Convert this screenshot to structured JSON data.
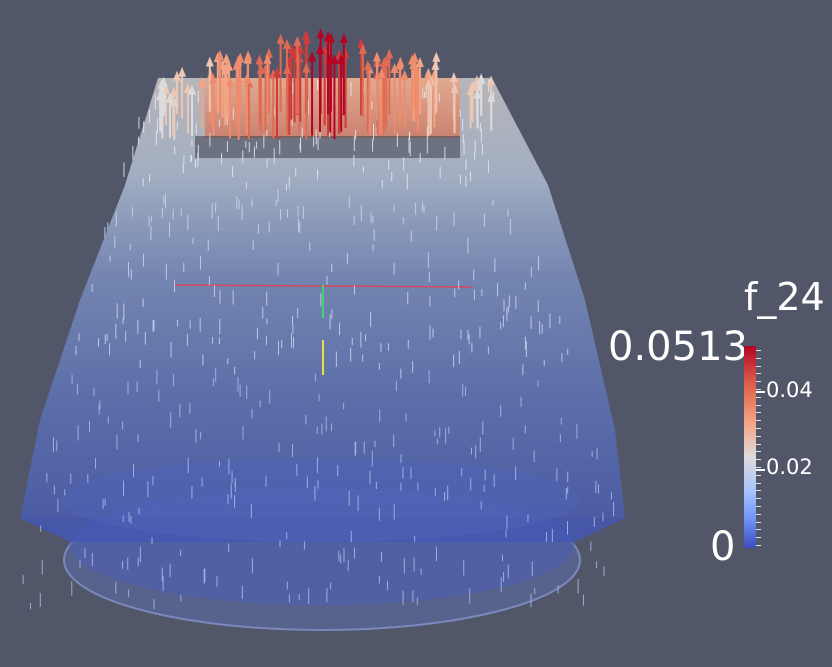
{
  "colorbar": {
    "title": "f_24",
    "max_label": "0.0513",
    "min_label": "0",
    "ticks": [
      "0.04",
      "0.02"
    ],
    "colors": [
      "#b40426",
      "#dc5d4a",
      "#f4a483",
      "#dddcdc",
      "#a6c4fe",
      "#6f92f3",
      "#3b4cc0"
    ]
  },
  "scene": {
    "background": "#525669",
    "axes_colors": {
      "x": "#d8465f",
      "y": "#3fd36b",
      "z": "#e6e04a"
    }
  }
}
